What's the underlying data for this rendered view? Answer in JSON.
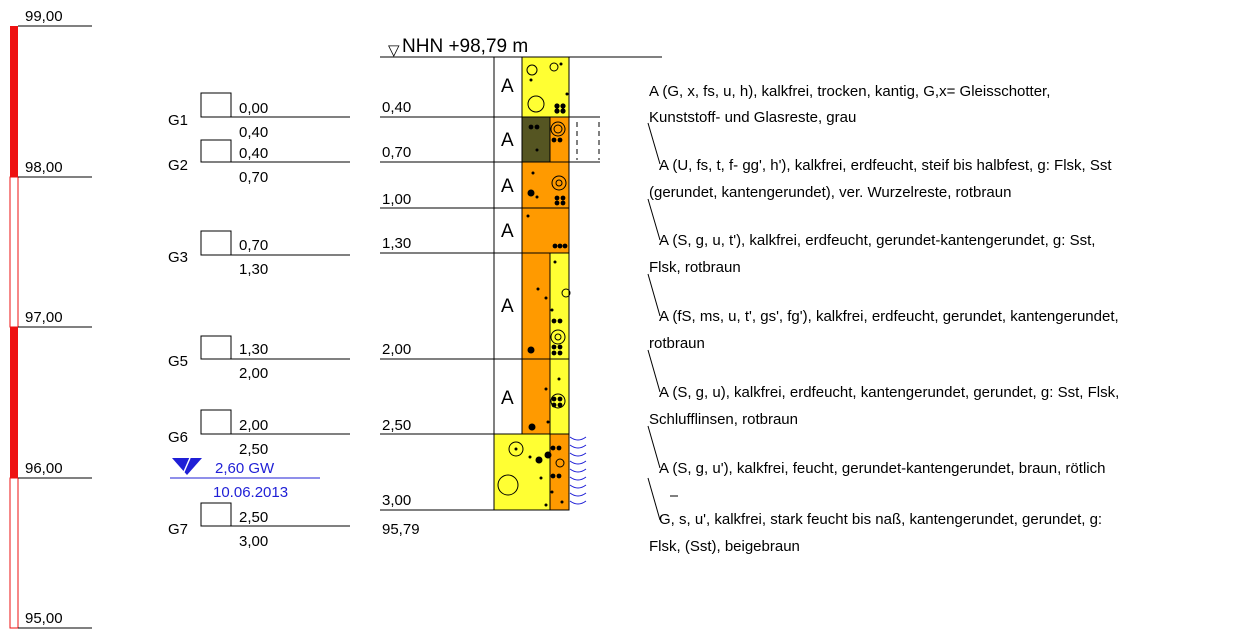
{
  "scale": {
    "labels": [
      "99,00",
      "98,00",
      "97,00",
      "96,00",
      "95,00"
    ]
  },
  "header": {
    "reference": "NHN +98,79 m"
  },
  "samples": [
    {
      "name": "G1",
      "top": "0,00",
      "bottom": "0,40"
    },
    {
      "name": "G2",
      "top": "0,40",
      "bottom": "0,70"
    },
    {
      "name": "G3",
      "top": "0,70",
      "bottom": "1,30"
    },
    {
      "name": "G5",
      "top": "1,30",
      "bottom": "2,00"
    },
    {
      "name": "G6",
      "top": "2,00",
      "bottom": "2,50"
    },
    {
      "name": "G7",
      "top": "2,50",
      "bottom": "3,00"
    }
  ],
  "groundwater": {
    "depth": "2,60 GW",
    "date": "10.06.2013"
  },
  "layer_depths": [
    "0,40",
    "0,70",
    "1,00",
    "1,30",
    "2,00",
    "2,50",
    "3,00"
  ],
  "end_elevation": "95,79",
  "layers": [
    {
      "code": "A",
      "colors": [
        "#ffff33"
      ]
    },
    {
      "code": "A",
      "colors": [
        "#555522",
        "#ff9a00"
      ]
    },
    {
      "code": "A",
      "colors": [
        "#ff9a00"
      ]
    },
    {
      "code": "A",
      "colors": [
        "#ff9a00"
      ]
    },
    {
      "code": "A",
      "colors": [
        "#ff9a00",
        "#ffff33"
      ]
    },
    {
      "code": "A",
      "colors": [
        "#ff9a00",
        "#ffff33"
      ]
    },
    {
      "code": "",
      "colors": [
        "#ffff33",
        "#ff9a00"
      ]
    }
  ],
  "descriptions": [
    [
      "A (G, x, fs, u, h), kalkfrei, trocken, kantig, G,x= Gleisschotter,",
      "Kunststoff- und Glasreste, grau"
    ],
    [
      "A (U, fs, t, f- gg', h'), kalkfrei, erdfeucht, steif bis halbfest, g: Flsk, Sst",
      "(gerundet, kantengerundet), ver. Wurzelreste, rotbraun"
    ],
    [
      "A (S, g, u, t'), kalkfrei, erdfeucht, gerundet-kantengerundet, g: Sst,",
      "Flsk, rotbraun"
    ],
    [
      "A (fS, ms, u, t', gs', fg'), kalkfrei, erdfeucht, gerundet, kantengerundet,",
      "rotbraun"
    ],
    [
      "A (S, g, u), kalkfrei, erdfeucht, kantengerundet, gerundet, g: Sst, Flsk,",
      "Schlufflinsen, rotbraun"
    ],
    [
      "A (S, g, u'), kalkfrei, feucht, gerundet-kantengerundet, braun, rötlich"
    ],
    [
      "G, s, u', kalkfrei, stark feucht bis naß, kantengerundet, gerundet, g:",
      "Flsk, (Sst), beigebraun"
    ]
  ],
  "colors": {
    "scale_red": "#ee1111",
    "yellow": "#ffff33",
    "orange": "#ff9a00",
    "olive": "#555522",
    "groundwater": "#1f1fd6"
  }
}
